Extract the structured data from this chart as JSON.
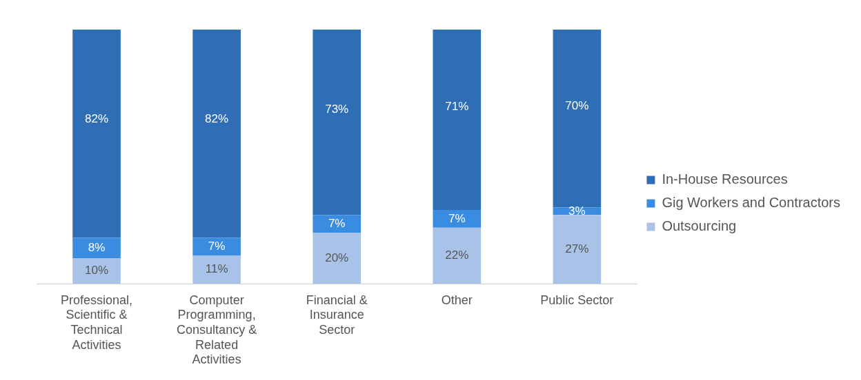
{
  "chart_data": {
    "type": "bar",
    "stacked": true,
    "legend": "right",
    "grid": false,
    "categories": [
      "Professional, Scientific & Technical Activities",
      "Computer Programming, Consultancy & Related Activities",
      "Financial & Insurance Sector",
      "Other",
      "Public Sector"
    ],
    "series": [
      {
        "name": "Outsourcing",
        "color": "#a9c3e8",
        "values": [
          10,
          11,
          20,
          22,
          27
        ],
        "value_labels": [
          "10%",
          "11%",
          "20%",
          "22%",
          "27%"
        ]
      },
      {
        "name": "Gig Workers and Contractors",
        "color": "#3a8ce0",
        "values": [
          8,
          7,
          7,
          7,
          3
        ],
        "value_labels": [
          "8%",
          "7%",
          "7%",
          "7%",
          "3%"
        ]
      },
      {
        "name": "In-House Resources",
        "color": "#2f6db5",
        "values": [
          82,
          82,
          73,
          71,
          70
        ],
        "value_labels": [
          "82%",
          "82%",
          "73%",
          "71%",
          "70%"
        ]
      }
    ]
  }
}
